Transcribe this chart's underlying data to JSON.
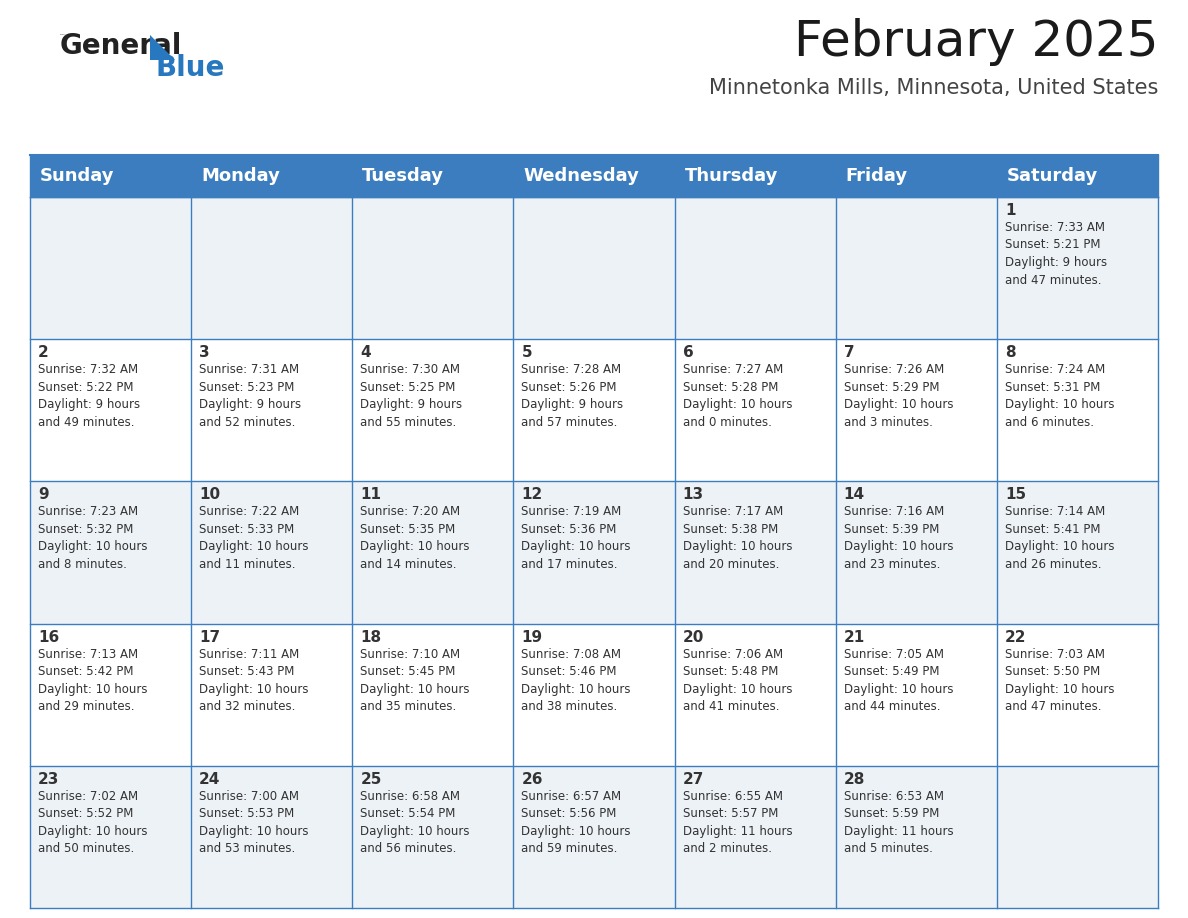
{
  "title": "February 2025",
  "subtitle": "Minnetonka Mills, Minnesota, United States",
  "header_bg": "#3c7dbf",
  "header_text_color": "#ffffff",
  "cell_bg_odd": "#edf2f7",
  "cell_bg_even": "#ffffff",
  "border_color": "#3c7dbf",
  "text_color": "#333333",
  "days_of_week": [
    "Sunday",
    "Monday",
    "Tuesday",
    "Wednesday",
    "Thursday",
    "Friday",
    "Saturday"
  ],
  "weeks": [
    [
      {
        "day": null,
        "info": null
      },
      {
        "day": null,
        "info": null
      },
      {
        "day": null,
        "info": null
      },
      {
        "day": null,
        "info": null
      },
      {
        "day": null,
        "info": null
      },
      {
        "day": null,
        "info": null
      },
      {
        "day": 1,
        "info": "Sunrise: 7:33 AM\nSunset: 5:21 PM\nDaylight: 9 hours\nand 47 minutes."
      }
    ],
    [
      {
        "day": 2,
        "info": "Sunrise: 7:32 AM\nSunset: 5:22 PM\nDaylight: 9 hours\nand 49 minutes."
      },
      {
        "day": 3,
        "info": "Sunrise: 7:31 AM\nSunset: 5:23 PM\nDaylight: 9 hours\nand 52 minutes."
      },
      {
        "day": 4,
        "info": "Sunrise: 7:30 AM\nSunset: 5:25 PM\nDaylight: 9 hours\nand 55 minutes."
      },
      {
        "day": 5,
        "info": "Sunrise: 7:28 AM\nSunset: 5:26 PM\nDaylight: 9 hours\nand 57 minutes."
      },
      {
        "day": 6,
        "info": "Sunrise: 7:27 AM\nSunset: 5:28 PM\nDaylight: 10 hours\nand 0 minutes."
      },
      {
        "day": 7,
        "info": "Sunrise: 7:26 AM\nSunset: 5:29 PM\nDaylight: 10 hours\nand 3 minutes."
      },
      {
        "day": 8,
        "info": "Sunrise: 7:24 AM\nSunset: 5:31 PM\nDaylight: 10 hours\nand 6 minutes."
      }
    ],
    [
      {
        "day": 9,
        "info": "Sunrise: 7:23 AM\nSunset: 5:32 PM\nDaylight: 10 hours\nand 8 minutes."
      },
      {
        "day": 10,
        "info": "Sunrise: 7:22 AM\nSunset: 5:33 PM\nDaylight: 10 hours\nand 11 minutes."
      },
      {
        "day": 11,
        "info": "Sunrise: 7:20 AM\nSunset: 5:35 PM\nDaylight: 10 hours\nand 14 minutes."
      },
      {
        "day": 12,
        "info": "Sunrise: 7:19 AM\nSunset: 5:36 PM\nDaylight: 10 hours\nand 17 minutes."
      },
      {
        "day": 13,
        "info": "Sunrise: 7:17 AM\nSunset: 5:38 PM\nDaylight: 10 hours\nand 20 minutes."
      },
      {
        "day": 14,
        "info": "Sunrise: 7:16 AM\nSunset: 5:39 PM\nDaylight: 10 hours\nand 23 minutes."
      },
      {
        "day": 15,
        "info": "Sunrise: 7:14 AM\nSunset: 5:41 PM\nDaylight: 10 hours\nand 26 minutes."
      }
    ],
    [
      {
        "day": 16,
        "info": "Sunrise: 7:13 AM\nSunset: 5:42 PM\nDaylight: 10 hours\nand 29 minutes."
      },
      {
        "day": 17,
        "info": "Sunrise: 7:11 AM\nSunset: 5:43 PM\nDaylight: 10 hours\nand 32 minutes."
      },
      {
        "day": 18,
        "info": "Sunrise: 7:10 AM\nSunset: 5:45 PM\nDaylight: 10 hours\nand 35 minutes."
      },
      {
        "day": 19,
        "info": "Sunrise: 7:08 AM\nSunset: 5:46 PM\nDaylight: 10 hours\nand 38 minutes."
      },
      {
        "day": 20,
        "info": "Sunrise: 7:06 AM\nSunset: 5:48 PM\nDaylight: 10 hours\nand 41 minutes."
      },
      {
        "day": 21,
        "info": "Sunrise: 7:05 AM\nSunset: 5:49 PM\nDaylight: 10 hours\nand 44 minutes."
      },
      {
        "day": 22,
        "info": "Sunrise: 7:03 AM\nSunset: 5:50 PM\nDaylight: 10 hours\nand 47 minutes."
      }
    ],
    [
      {
        "day": 23,
        "info": "Sunrise: 7:02 AM\nSunset: 5:52 PM\nDaylight: 10 hours\nand 50 minutes."
      },
      {
        "day": 24,
        "info": "Sunrise: 7:00 AM\nSunset: 5:53 PM\nDaylight: 10 hours\nand 53 minutes."
      },
      {
        "day": 25,
        "info": "Sunrise: 6:58 AM\nSunset: 5:54 PM\nDaylight: 10 hours\nand 56 minutes."
      },
      {
        "day": 26,
        "info": "Sunrise: 6:57 AM\nSunset: 5:56 PM\nDaylight: 10 hours\nand 59 minutes."
      },
      {
        "day": 27,
        "info": "Sunrise: 6:55 AM\nSunset: 5:57 PM\nDaylight: 11 hours\nand 2 minutes."
      },
      {
        "day": 28,
        "info": "Sunrise: 6:53 AM\nSunset: 5:59 PM\nDaylight: 11 hours\nand 5 minutes."
      },
      {
        "day": null,
        "info": null
      }
    ]
  ],
  "logo_color_general": "#222222",
  "logo_color_blue": "#2878c0",
  "logo_triangle_color": "#2878c0",
  "title_fontsize": 36,
  "subtitle_fontsize": 15,
  "header_fontsize": 13,
  "day_num_fontsize": 11,
  "info_fontsize": 8.5
}
